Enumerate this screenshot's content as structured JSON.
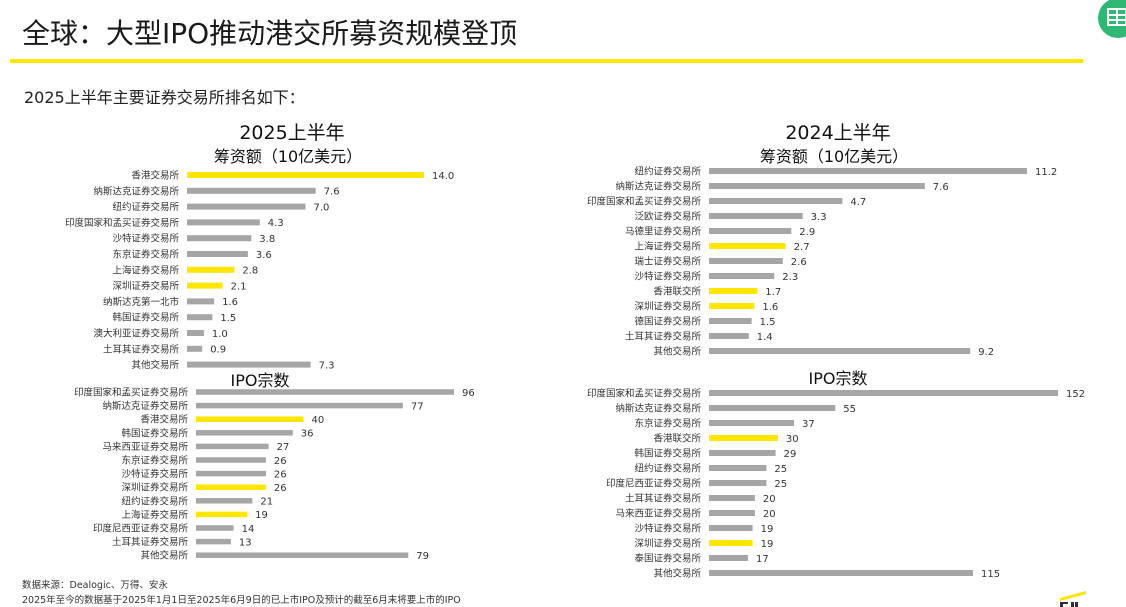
{
  "slide": {
    "title": "全球：大型IPO推动港交所募资规模登顶",
    "subtitle": "2025上半年主要证券交易所排名如下：",
    "source_note": "数据来源：Dealogic、万得、安永",
    "basis_note": "2025年至今的数据基于2025年1月1日至2025年6月9日的已上市IPO及预计的截至6月末将要上市的IPO"
  },
  "colors": {
    "bar_default": "#a6a6a6",
    "bar_highlight": "#ffe600",
    "accent_rule": "#ffe600",
    "badge": "#2eb873"
  },
  "icons": {
    "corner_badge": "spreadsheet-icon",
    "logo": "ey-logo"
  },
  "panels": [
    {
      "title": "2025上半年",
      "funds_title": "筹资额（10亿美元）",
      "count_title": "IPO宗数"
    },
    {
      "title": "2024上半年",
      "funds_title": "筹资额（10亿美元）",
      "count_title": "IPO宗数"
    }
  ],
  "chart_data": [
    {
      "type": "bar",
      "orientation": "horizontal",
      "title": "筹资额（10亿美元）",
      "period": "2025上半年",
      "categories": [
        "香港交易所",
        "纳斯达克证券交易所",
        "纽约证券交易所",
        "印度国家和孟买证券交易所",
        "沙特证券交易所",
        "东京证券交易所",
        "上海证券交易所",
        "深圳证券交易所",
        "纳斯达克第一北市",
        "韩国证券交易所",
        "澳大利亚证券交易所",
        "土耳其证券交易所",
        "其他交易所"
      ],
      "values": [
        14.0,
        7.6,
        7.0,
        4.3,
        3.8,
        3.6,
        2.8,
        2.1,
        1.6,
        1.5,
        1.0,
        0.9,
        7.3
      ],
      "value_labels": [
        "14.0",
        "7.6",
        "7.0",
        "4.3",
        "3.8",
        "3.6",
        "2.8",
        "2.1",
        "1.6",
        "1.5",
        "1.0",
        "0.9",
        "7.3"
      ],
      "highlighted": [
        "香港交易所",
        "上海证券交易所",
        "深圳证券交易所"
      ],
      "xlim": [
        0,
        14.0
      ]
    },
    {
      "type": "bar",
      "orientation": "horizontal",
      "title": "IPO宗数",
      "period": "2025上半年",
      "categories": [
        "印度国家和孟买证券交易所",
        "纳斯达克证券交易所",
        "香港交易所",
        "韩国证券交易所",
        "马来西亚证券交易所",
        "东京证券交易所",
        "沙特证券交易所",
        "深圳证券交易所",
        "纽约证券交易所",
        "上海证券交易所",
        "印度尼西亚证券交易所",
        "土耳其证券交易所",
        "其他交易所"
      ],
      "values": [
        96,
        77,
        40,
        36,
        27,
        26,
        26,
        26,
        21,
        19,
        14,
        13,
        79
      ],
      "value_labels": [
        "96",
        "77",
        "40",
        "36",
        "27",
        "26",
        "26",
        "26",
        "21",
        "19",
        "14",
        "13",
        "79"
      ],
      "highlighted": [
        "香港交易所",
        "深圳证券交易所",
        "上海证券交易所"
      ],
      "xlim": [
        0,
        96
      ]
    },
    {
      "type": "bar",
      "orientation": "horizontal",
      "title": "筹资额（10亿美元）",
      "period": "2024上半年",
      "categories": [
        "纽约证券交易所",
        "纳斯达克证券交易所",
        "印度国家和孟买证券交易所",
        "泛欧证券交易所",
        "马德里证券交易所",
        "上海证券交易所",
        "瑞士证券交易所",
        "沙特证券交易所",
        "香港联交所",
        "深圳证券交易所",
        "德国证券交易所",
        "土耳其证券交易所",
        "其他交易所"
      ],
      "values": [
        11.2,
        7.6,
        4.7,
        3.3,
        2.9,
        2.7,
        2.6,
        2.3,
        1.7,
        1.6,
        1.5,
        1.4,
        9.2
      ],
      "value_labels": [
        "11.2",
        "7.6",
        "4.7",
        "3.3",
        "2.9",
        "2.7",
        "2.6",
        "2.3",
        "1.7",
        "1.6",
        "1.5",
        "1.4",
        "9.2"
      ],
      "highlighted": [
        "上海证券交易所",
        "香港联交所",
        "深圳证券交易所"
      ],
      "xlim": [
        0,
        11.2
      ]
    },
    {
      "type": "bar",
      "orientation": "horizontal",
      "title": "IPO宗数",
      "period": "2024上半年",
      "categories": [
        "印度国家和孟买证券交易所",
        "纳斯达克证券交易所",
        "东京证券交易所",
        "香港联交所",
        "韩国证券交易所",
        "纽约证券交易所",
        "印度尼西亚证券交易所",
        "土耳其证券交易所",
        "马来西亚证券交易所",
        "沙特证券交易所",
        "深圳证券交易所",
        "泰国证券交易所",
        "其他交易所"
      ],
      "values": [
        152,
        55,
        37,
        30,
        29,
        25,
        25,
        20,
        20,
        19,
        19,
        17,
        115
      ],
      "value_labels": [
        "152",
        "55",
        "37",
        "30",
        "29",
        "25",
        "25",
        "20",
        "20",
        "19",
        "19",
        "17",
        "115"
      ],
      "highlighted": [
        "香港联交所",
        "深圳证券交易所"
      ],
      "xlim": [
        0,
        152
      ]
    }
  ]
}
